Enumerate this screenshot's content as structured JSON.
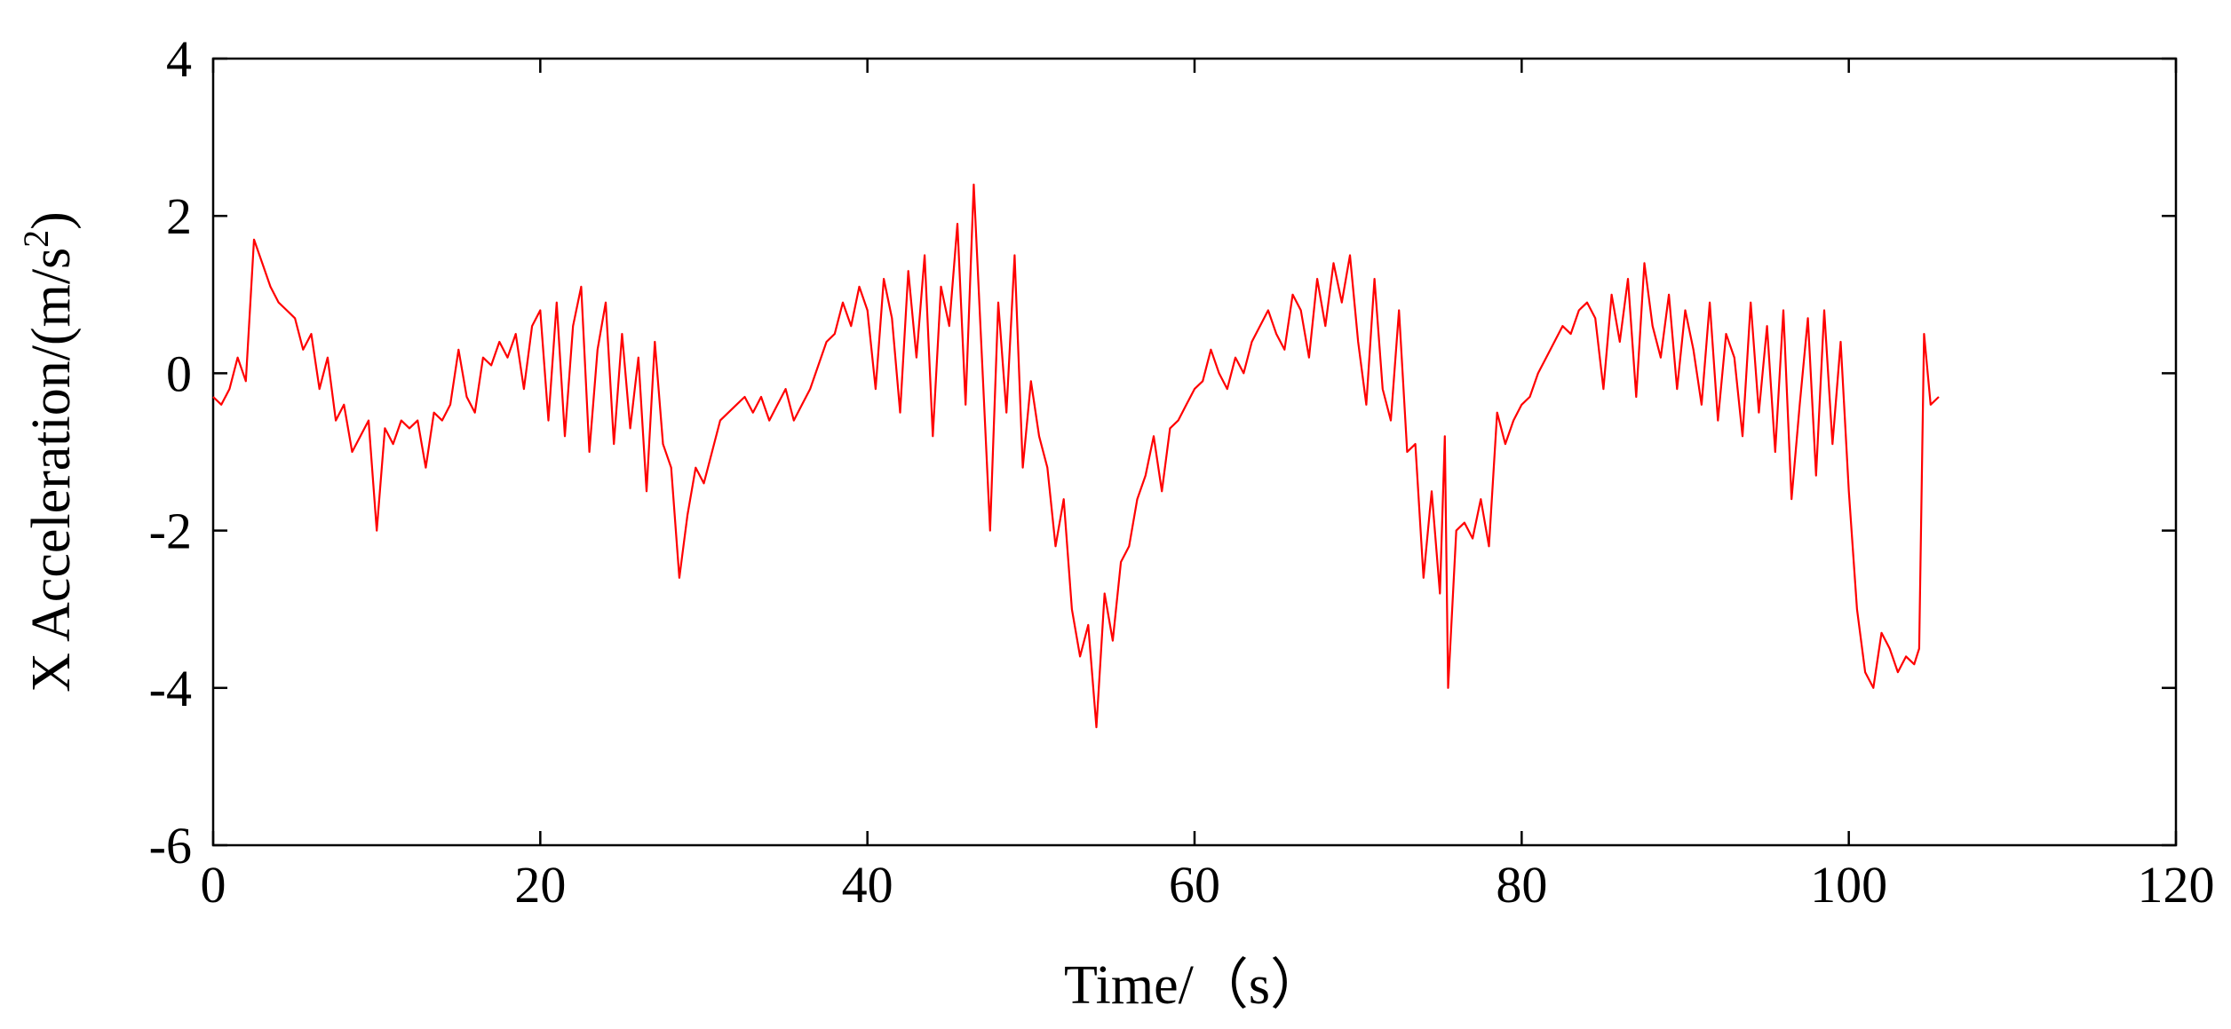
{
  "chart_data": {
    "type": "line",
    "title": "",
    "xlabel": "Time/（s）",
    "ylabel_main": "X Acceleration/(m/s",
    "ylabel_sup": "2",
    "ylabel_close": ")",
    "xlim": [
      0,
      120
    ],
    "ylim": [
      -6,
      4
    ],
    "xticks": [
      0,
      20,
      40,
      60,
      80,
      100,
      120
    ],
    "yticks": [
      -6,
      -4,
      -2,
      0,
      2,
      4
    ],
    "xtick_labels": [
      "0",
      "20",
      "40",
      "60",
      "80",
      "100",
      "120"
    ],
    "ytick_labels": [
      "-6",
      "-4",
      "-2",
      "0",
      "2",
      "4"
    ],
    "grid": false,
    "legend": "none",
    "series_color": "#ff0000",
    "series": [
      {
        "x": [
          0.0,
          0.5,
          1.0,
          1.5,
          2.0,
          2.5,
          3.0,
          3.5,
          4.0,
          4.5,
          5.0,
          5.5,
          6.0,
          6.5,
          7.0,
          7.5,
          8.0,
          8.5,
          9.0,
          9.5,
          10.0,
          10.5,
          11.0,
          11.5,
          12.0,
          12.5,
          13.0,
          13.5,
          14.0,
          14.5,
          15.0,
          15.5,
          16.0,
          16.5,
          17.0,
          17.5,
          18.0,
          18.5,
          19.0,
          19.5,
          20.0,
          20.5,
          21.0,
          21.5,
          22.0,
          22.5,
          23.0,
          23.5,
          24.0,
          24.5,
          25.0,
          25.5,
          26.0,
          26.5,
          27.0,
          27.5,
          28.0,
          28.5,
          29.0,
          29.5,
          30.0,
          30.5,
          31.0,
          31.5,
          32.0,
          32.5,
          33.0,
          33.5,
          34.0,
          34.5,
          35.0,
          35.5,
          36.0,
          36.5,
          37.0,
          37.5,
          38.0,
          38.5,
          39.0,
          39.5,
          40.0,
          40.5,
          41.0,
          41.5,
          42.0,
          42.5,
          43.0,
          43.5,
          44.0,
          44.5,
          45.0,
          45.5,
          46.0,
          46.5,
          47.0,
          47.5,
          48.0,
          48.5,
          49.0,
          49.5,
          50.0,
          50.5,
          51.0,
          51.5,
          52.0,
          52.5,
          53.0,
          53.5,
          54.0,
          54.5,
          55.0,
          55.5,
          56.0,
          56.5,
          57.0,
          57.5,
          58.0,
          58.5,
          59.0,
          59.5,
          60.0,
          60.5,
          61.0,
          61.5,
          62.0,
          62.5,
          63.0,
          63.5,
          64.0,
          64.5,
          65.0,
          65.5,
          66.0,
          66.5,
          67.0,
          67.5,
          68.0,
          68.5,
          69.0,
          69.5,
          70.0,
          70.5,
          71.0,
          71.5,
          72.0,
          72.5,
          73.0,
          73.5,
          74.0,
          74.5,
          75.0,
          75.3,
          75.5,
          76.0,
          76.5,
          77.0,
          77.5,
          78.0,
          78.5,
          79.0,
          79.5,
          80.0,
          80.5,
          81.0,
          81.5,
          82.0,
          82.5,
          83.0,
          83.5,
          84.0,
          84.5,
          85.0,
          85.5,
          86.0,
          86.5,
          87.0,
          87.5,
          88.0,
          88.5,
          89.0,
          89.5,
          90.0,
          90.5,
          91.0,
          91.5,
          92.0,
          92.5,
          93.0,
          93.5,
          94.0,
          94.5,
          95.0,
          95.5,
          96.0,
          96.5,
          97.0,
          97.5,
          98.0,
          98.5,
          99.0,
          99.5,
          100.0,
          100.5,
          101.0,
          101.5,
          102.0,
          102.5,
          103.0,
          103.5,
          104.0,
          104.3,
          104.6,
          105.0,
          105.5
        ],
        "y": [
          -0.3,
          -0.4,
          -0.2,
          0.2,
          -0.1,
          1.7,
          1.4,
          1.1,
          0.9,
          0.8,
          0.7,
          0.3,
          0.5,
          -0.2,
          0.2,
          -0.6,
          -0.4,
          -1.0,
          -0.8,
          -0.6,
          -2.0,
          -0.7,
          -0.9,
          -0.6,
          -0.7,
          -0.6,
          -1.2,
          -0.5,
          -0.6,
          -0.4,
          0.3,
          -0.3,
          -0.5,
          0.2,
          0.1,
          0.4,
          0.2,
          0.5,
          -0.2,
          0.6,
          0.8,
          -0.6,
          0.9,
          -0.8,
          0.6,
          1.1,
          -1.0,
          0.3,
          0.9,
          -0.9,
          0.5,
          -0.7,
          0.2,
          -1.5,
          0.4,
          -0.9,
          -1.2,
          -2.6,
          -1.8,
          -1.2,
          -1.4,
          -1.0,
          -0.6,
          -0.5,
          -0.4,
          -0.3,
          -0.5,
          -0.3,
          -0.6,
          -0.4,
          -0.2,
          -0.6,
          -0.4,
          -0.2,
          0.1,
          0.4,
          0.5,
          0.9,
          0.6,
          1.1,
          0.8,
          -0.2,
          1.2,
          0.7,
          -0.5,
          1.3,
          0.2,
          1.5,
          -0.8,
          1.1,
          0.6,
          1.9,
          -0.4,
          2.4,
          0.2,
          -2.0,
          0.9,
          -0.5,
          1.5,
          -1.2,
          -0.1,
          -0.8,
          -1.2,
          -2.2,
          -1.6,
          -3.0,
          -3.6,
          -3.2,
          -4.5,
          -2.8,
          -3.4,
          -2.4,
          -2.2,
          -1.6,
          -1.3,
          -0.8,
          -1.5,
          -0.7,
          -0.6,
          -0.4,
          -0.2,
          -0.1,
          0.3,
          0.0,
          -0.2,
          0.2,
          0.0,
          0.4,
          0.6,
          0.8,
          0.5,
          0.3,
          1.0,
          0.8,
          0.2,
          1.2,
          0.6,
          1.4,
          0.9,
          1.5,
          0.4,
          -0.4,
          1.2,
          -0.2,
          -0.6,
          0.8,
          -1.0,
          -0.9,
          -2.6,
          -1.5,
          -2.8,
          -0.8,
          -4.0,
          -2.0,
          -1.9,
          -2.1,
          -1.6,
          -2.2,
          -0.5,
          -0.9,
          -0.6,
          -0.4,
          -0.3,
          0.0,
          0.2,
          0.4,
          0.6,
          0.5,
          0.8,
          0.9,
          0.7,
          -0.2,
          1.0,
          0.4,
          1.2,
          -0.3,
          1.4,
          0.6,
          0.2,
          1.0,
          -0.2,
          0.8,
          0.3,
          -0.4,
          0.9,
          -0.6,
          0.5,
          0.2,
          -0.8,
          0.9,
          -0.5,
          0.6,
          -1.0,
          0.8,
          -1.6,
          -0.4,
          0.7,
          -1.3,
          0.8,
          -0.9,
          0.4,
          -1.5,
          -3.0,
          -3.8,
          -4.0,
          -3.3,
          -3.5,
          -3.8,
          -3.6,
          -3.7,
          -3.5,
          0.5,
          -0.4,
          -0.3
        ]
      }
    ]
  }
}
